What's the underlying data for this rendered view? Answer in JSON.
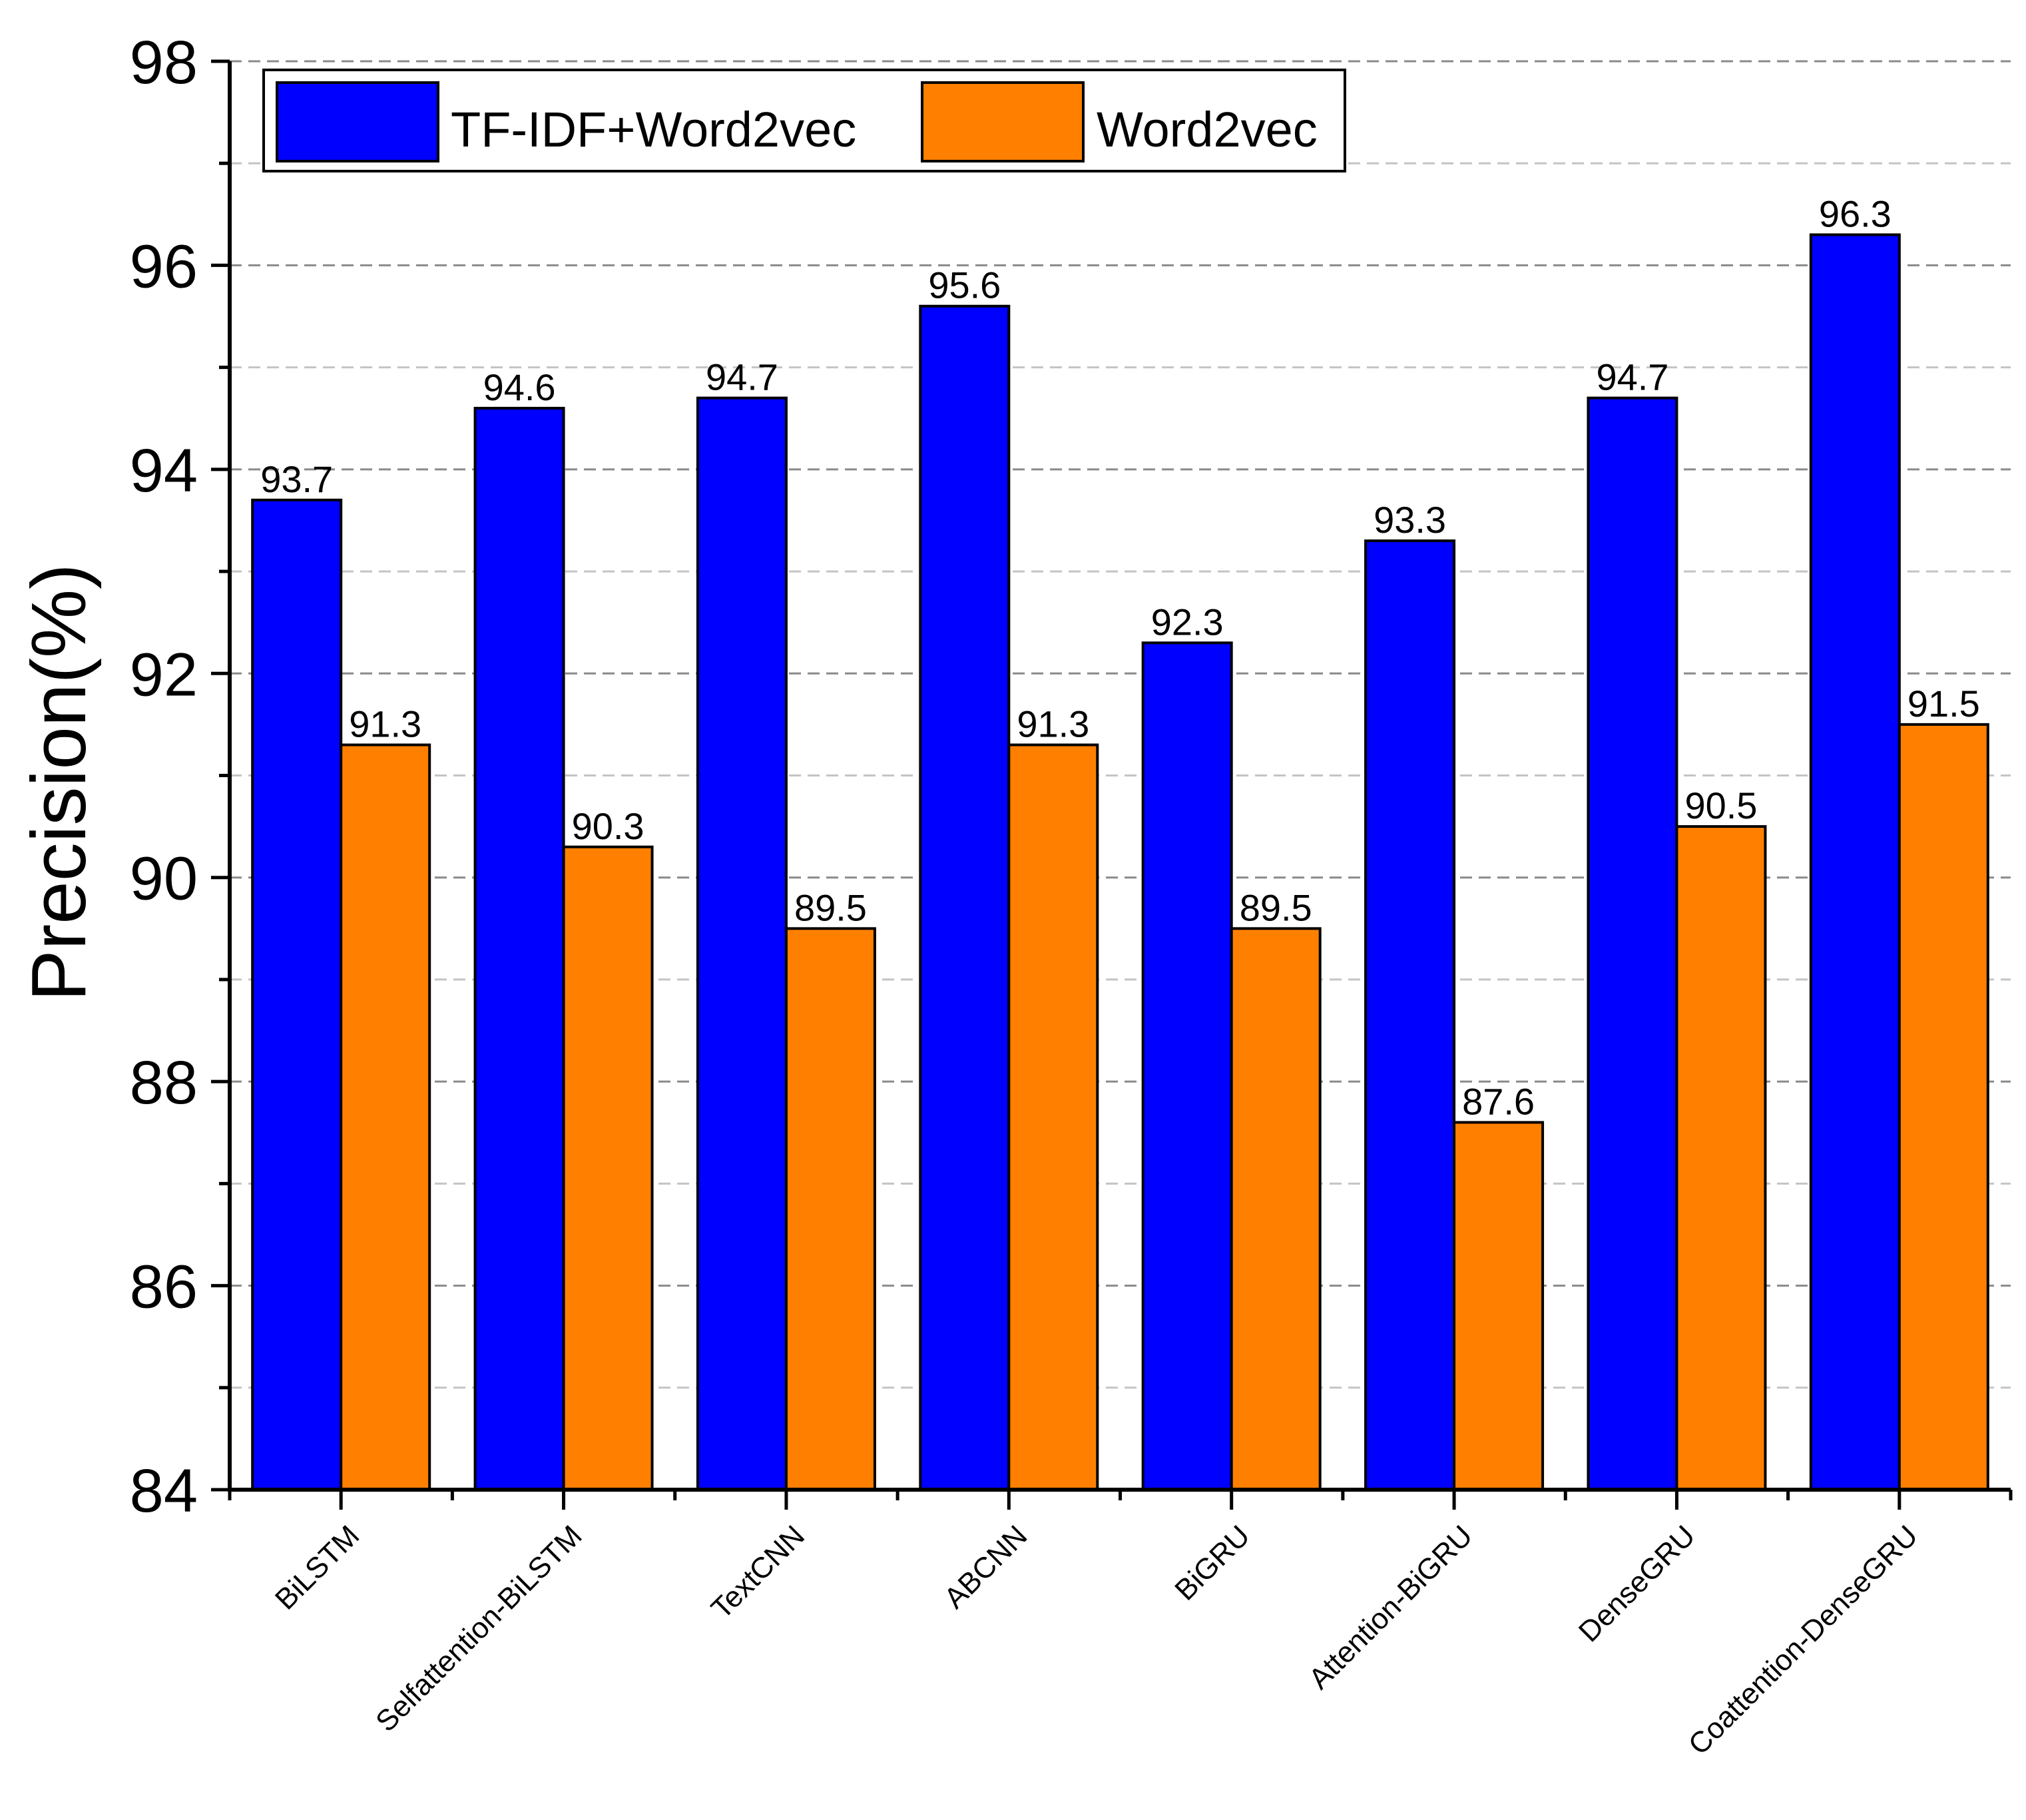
{
  "chart_data": {
    "type": "bar",
    "title": "",
    "xlabel": "",
    "ylabel": "Precision(%)",
    "ylim": [
      84,
      98
    ],
    "yticks": [
      "84",
      "86",
      "88",
      "90",
      "92",
      "94",
      "96",
      "98"
    ],
    "grid": "horizontal dashed",
    "legend_position": "top-left",
    "categories": [
      "BiLSTM",
      "Selfattention-BiLSTM",
      "TextCNN",
      "ABCNN",
      "BiGRU",
      "Attention-BiGRU",
      "DenseGRU",
      "Coattention-DenseGRU"
    ],
    "series": [
      {
        "name": "TF-IDF+Word2vec",
        "color": "#0000ff",
        "values": [
          93.7,
          94.6,
          94.7,
          95.6,
          92.3,
          93.3,
          94.7,
          96.3
        ],
        "labels": [
          "93.7",
          "94.6",
          "94.7",
          "95.6",
          "92.3",
          "93.3",
          "94.7",
          "96.3"
        ]
      },
      {
        "name": "Word2vec",
        "color": "#ff8000",
        "values": [
          91.3,
          90.3,
          89.5,
          91.3,
          89.5,
          87.6,
          90.5,
          91.5
        ],
        "labels": [
          "91.3",
          "90.3",
          "89.5",
          "91.3",
          "89.5",
          "87.6",
          "90.5",
          "91.5"
        ]
      }
    ]
  }
}
